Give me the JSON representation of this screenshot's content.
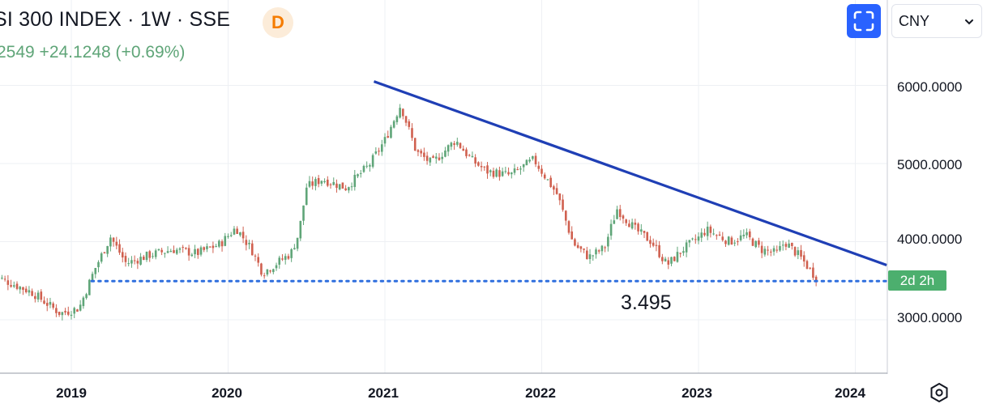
{
  "header": {
    "title": "SI 300 INDEX · 1W · SSE",
    "badge": "D",
    "change": "2549  +24.1248 (+0.69%)"
  },
  "controls": {
    "fullscreen_icon": "fullscreen-icon",
    "currency": "CNY",
    "settings_icon": "hexagon-gear-icon"
  },
  "price_tag": "2d 2h",
  "colors": {
    "up": "#5fa578",
    "down": "#d0604f",
    "trendline": "#1f3fb5",
    "support": "#2f6fde",
    "tag": "#4caf6e"
  },
  "chart_data": {
    "type": "candlestick",
    "interval": "1W",
    "currency": "CNY",
    "ylim": [
      2400,
      6400
    ],
    "y_ticks": [
      6000,
      5000,
      4000,
      3000
    ],
    "y_tick_labels": [
      "6000.0000",
      "5000.0000",
      "4000.0000",
      "3000.0000"
    ],
    "x_ticks": [
      2019,
      2020,
      2021,
      2022,
      2023,
      2024
    ],
    "x_tick_labels": [
      "2019",
      "2020",
      "2021",
      "2022",
      "2023",
      "2024"
    ],
    "grid": true,
    "trend_path_closes": [
      [
        2018.5,
        3570
      ],
      [
        2018.75,
        3350
      ],
      [
        2018.93,
        3080
      ],
      [
        2019.05,
        3150
      ],
      [
        2019.15,
        3650
      ],
      [
        2019.25,
        4060
      ],
      [
        2019.35,
        3720
      ],
      [
        2019.5,
        3830
      ],
      [
        2019.65,
        3900
      ],
      [
        2019.8,
        3850
      ],
      [
        2019.95,
        3970
      ],
      [
        2020.05,
        4180
      ],
      [
        2020.15,
        3900
      ],
      [
        2020.22,
        3600
      ],
      [
        2020.3,
        3710
      ],
      [
        2020.4,
        3850
      ],
      [
        2020.45,
        4100
      ],
      [
        2020.5,
        4700
      ],
      [
        2020.6,
        4800
      ],
      [
        2020.75,
        4690
      ],
      [
        2020.9,
        4980
      ],
      [
        2021.0,
        5300
      ],
      [
        2021.1,
        5750
      ],
      [
        2021.2,
        5150
      ],
      [
        2021.3,
        5000
      ],
      [
        2021.45,
        5300
      ],
      [
        2021.55,
        5050
      ],
      [
        2021.65,
        4900
      ],
      [
        2021.8,
        4850
      ],
      [
        2021.95,
        5050
      ],
      [
        2022.1,
        4600
      ],
      [
        2022.2,
        3980
      ],
      [
        2022.3,
        3800
      ],
      [
        2022.4,
        3920
      ],
      [
        2022.48,
        4420
      ],
      [
        2022.6,
        4150
      ],
      [
        2022.7,
        4000
      ],
      [
        2022.8,
        3700
      ],
      [
        2022.9,
        3900
      ],
      [
        2023.0,
        4050
      ],
      [
        2023.05,
        4150
      ],
      [
        2023.2,
        4000
      ],
      [
        2023.3,
        4080
      ],
      [
        2023.4,
        3900
      ],
      [
        2023.5,
        3850
      ],
      [
        2023.55,
        4000
      ],
      [
        2023.65,
        3800
      ],
      [
        2023.75,
        3540
      ]
    ],
    "trendline": {
      "start": [
        2020.93,
        6050
      ],
      "end": [
        2024.2,
        3700
      ]
    },
    "support": {
      "value": 3495,
      "from": 2019.13,
      "to": 2024.2,
      "style": "dotted"
    },
    "annotation": "3.495"
  }
}
